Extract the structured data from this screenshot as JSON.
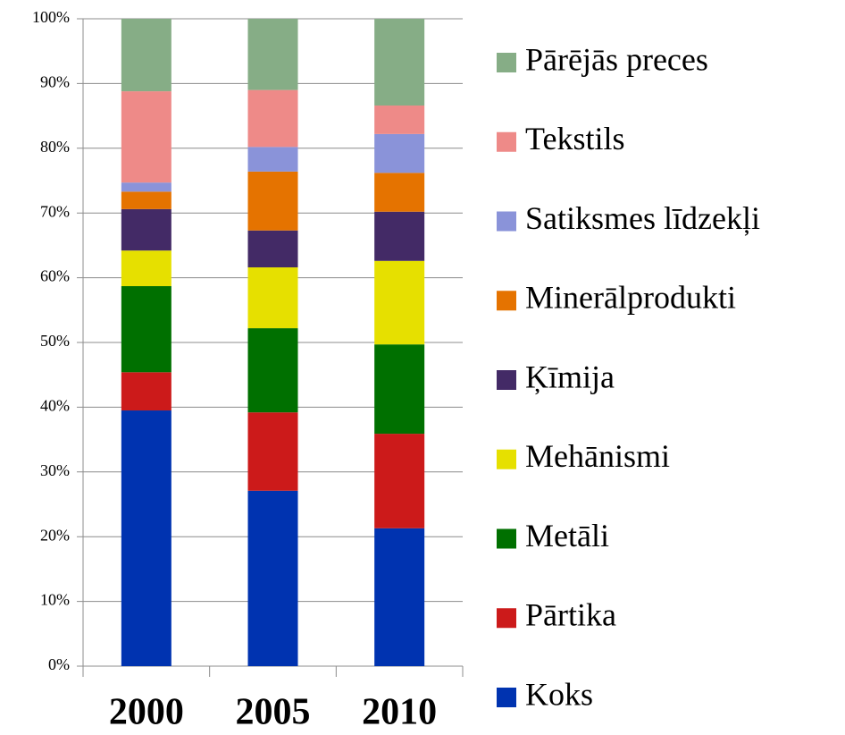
{
  "chart_data": {
    "type": "stacked_bar",
    "categories": [
      "2000",
      "2005",
      "2010"
    ],
    "series": [
      {
        "name": "Koks",
        "color": "#0033b0",
        "values": [
          39.5,
          27.1,
          21.3
        ]
      },
      {
        "name": "Pārtika",
        "color": "#cc1a1a",
        "values": [
          5.9,
          12.1,
          14.6
        ]
      },
      {
        "name": "Metāli",
        "color": "#007000",
        "values": [
          13.3,
          13.0,
          13.8
        ]
      },
      {
        "name": "Mehānismi",
        "color": "#e6e000",
        "values": [
          5.5,
          9.4,
          12.9
        ]
      },
      {
        "name": "Ķīmija",
        "color": "#432a66",
        "values": [
          6.4,
          5.7,
          7.6
        ]
      },
      {
        "name": "Minerālprodukti",
        "color": "#e57300",
        "values": [
          2.7,
          9.1,
          6.0
        ]
      },
      {
        "name": "Satiksmes līdzekļi",
        "color": "#8a93d9",
        "values": [
          1.4,
          3.8,
          6.0
        ]
      },
      {
        "name": "Tekstils",
        "color": "#ee8a88",
        "values": [
          14.1,
          8.8,
          4.4
        ]
      },
      {
        "name": "Pārējās preces",
        "color": "#86ad86",
        "values": [
          11.2,
          11.0,
          13.4
        ]
      }
    ],
    "ylim": [
      0,
      100
    ],
    "yticks": [
      {
        "value": 0,
        "label": "0%"
      },
      {
        "value": 10,
        "label": "10%"
      },
      {
        "value": 20,
        "label": "20%"
      },
      {
        "value": 30,
        "label": "30%"
      },
      {
        "value": 40,
        "label": "40%"
      },
      {
        "value": 50,
        "label": "50%"
      },
      {
        "value": 60,
        "label": "60%"
      },
      {
        "value": 70,
        "label": "70%"
      },
      {
        "value": 80,
        "label": "80%"
      },
      {
        "value": 90,
        "label": "90%"
      },
      {
        "value": 100,
        "label": "100%"
      }
    ],
    "grid": true,
    "legend": "right"
  }
}
